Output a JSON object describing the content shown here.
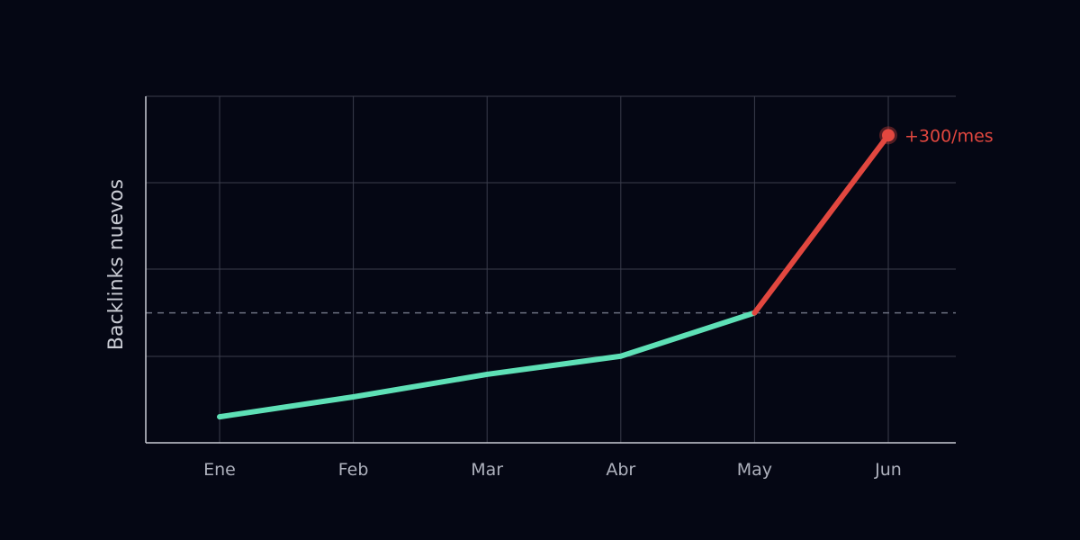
{
  "colors": {
    "background": "#050714",
    "grid": "#3a3d4c",
    "axis": "#c9cbd3",
    "threshold": "#6b6f80",
    "series_normal": "#5ee0b6",
    "series_spike": "#e2473f"
  },
  "chart_data": {
    "type": "line",
    "ylabel": "Backlinks nuevos",
    "xlabel": "",
    "categories": [
      "Ene",
      "Feb",
      "Mar",
      "Abr",
      "May",
      "Jun"
    ],
    "y_ticks_labeled": false,
    "ylim": [
      0,
      400
    ],
    "grid": true,
    "series": [
      {
        "values": [
          30,
          53,
          79,
          100,
          150,
          355
        ]
      }
    ],
    "threshold": {
      "value": 150,
      "style": "dashed"
    },
    "annotation": {
      "category": "Jun",
      "text": "+300/mes"
    }
  }
}
